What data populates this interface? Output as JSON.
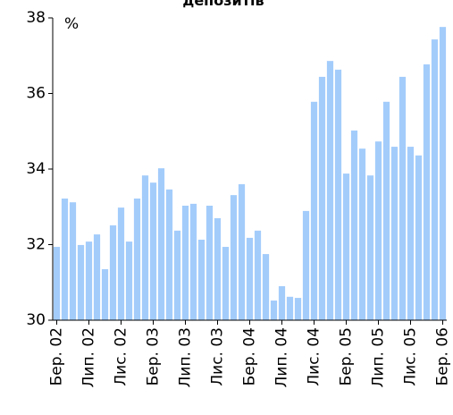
{
  "chart_data": {
    "type": "bar",
    "title": "депозитів",
    "ylabel": "%",
    "categories": [
      "Бер. 02",
      null,
      null,
      null,
      "Лип. 02",
      null,
      null,
      null,
      "Лис. 02",
      null,
      null,
      null,
      "Бер. 03",
      null,
      null,
      null,
      "Лип. 03",
      null,
      null,
      null,
      "Лис. 03",
      null,
      null,
      null,
      "Бер. 04",
      null,
      null,
      null,
      "Лип. 04",
      null,
      null,
      null,
      "Лис. 04",
      null,
      null,
      null,
      "Бер. 05",
      null,
      null,
      null,
      "Лип. 05",
      null,
      null,
      null,
      "Лис. 05",
      null,
      null,
      null,
      "Бер. 06"
    ],
    "values": [
      31.94,
      33.22,
      33.12,
      31.99,
      32.08,
      32.27,
      31.35,
      32.51,
      32.98,
      32.08,
      33.22,
      33.83,
      33.64,
      34.02,
      33.46,
      32.37,
      33.03,
      33.08,
      32.13,
      33.03,
      32.7,
      31.94,
      33.31,
      33.6,
      32.18,
      32.37,
      31.75,
      30.52,
      30.9,
      30.62,
      30.59,
      32.89,
      35.78,
      36.44,
      36.86,
      36.63,
      33.88,
      35.02,
      34.54,
      33.83,
      34.73,
      35.78,
      34.59,
      36.44,
      34.59,
      34.36,
      36.77,
      37.43,
      37.76
    ],
    "color": "#a3ccfb",
    "ylim": [
      30,
      38
    ],
    "yticks": [
      30,
      32,
      34,
      36,
      38
    ],
    "grid": false
  }
}
